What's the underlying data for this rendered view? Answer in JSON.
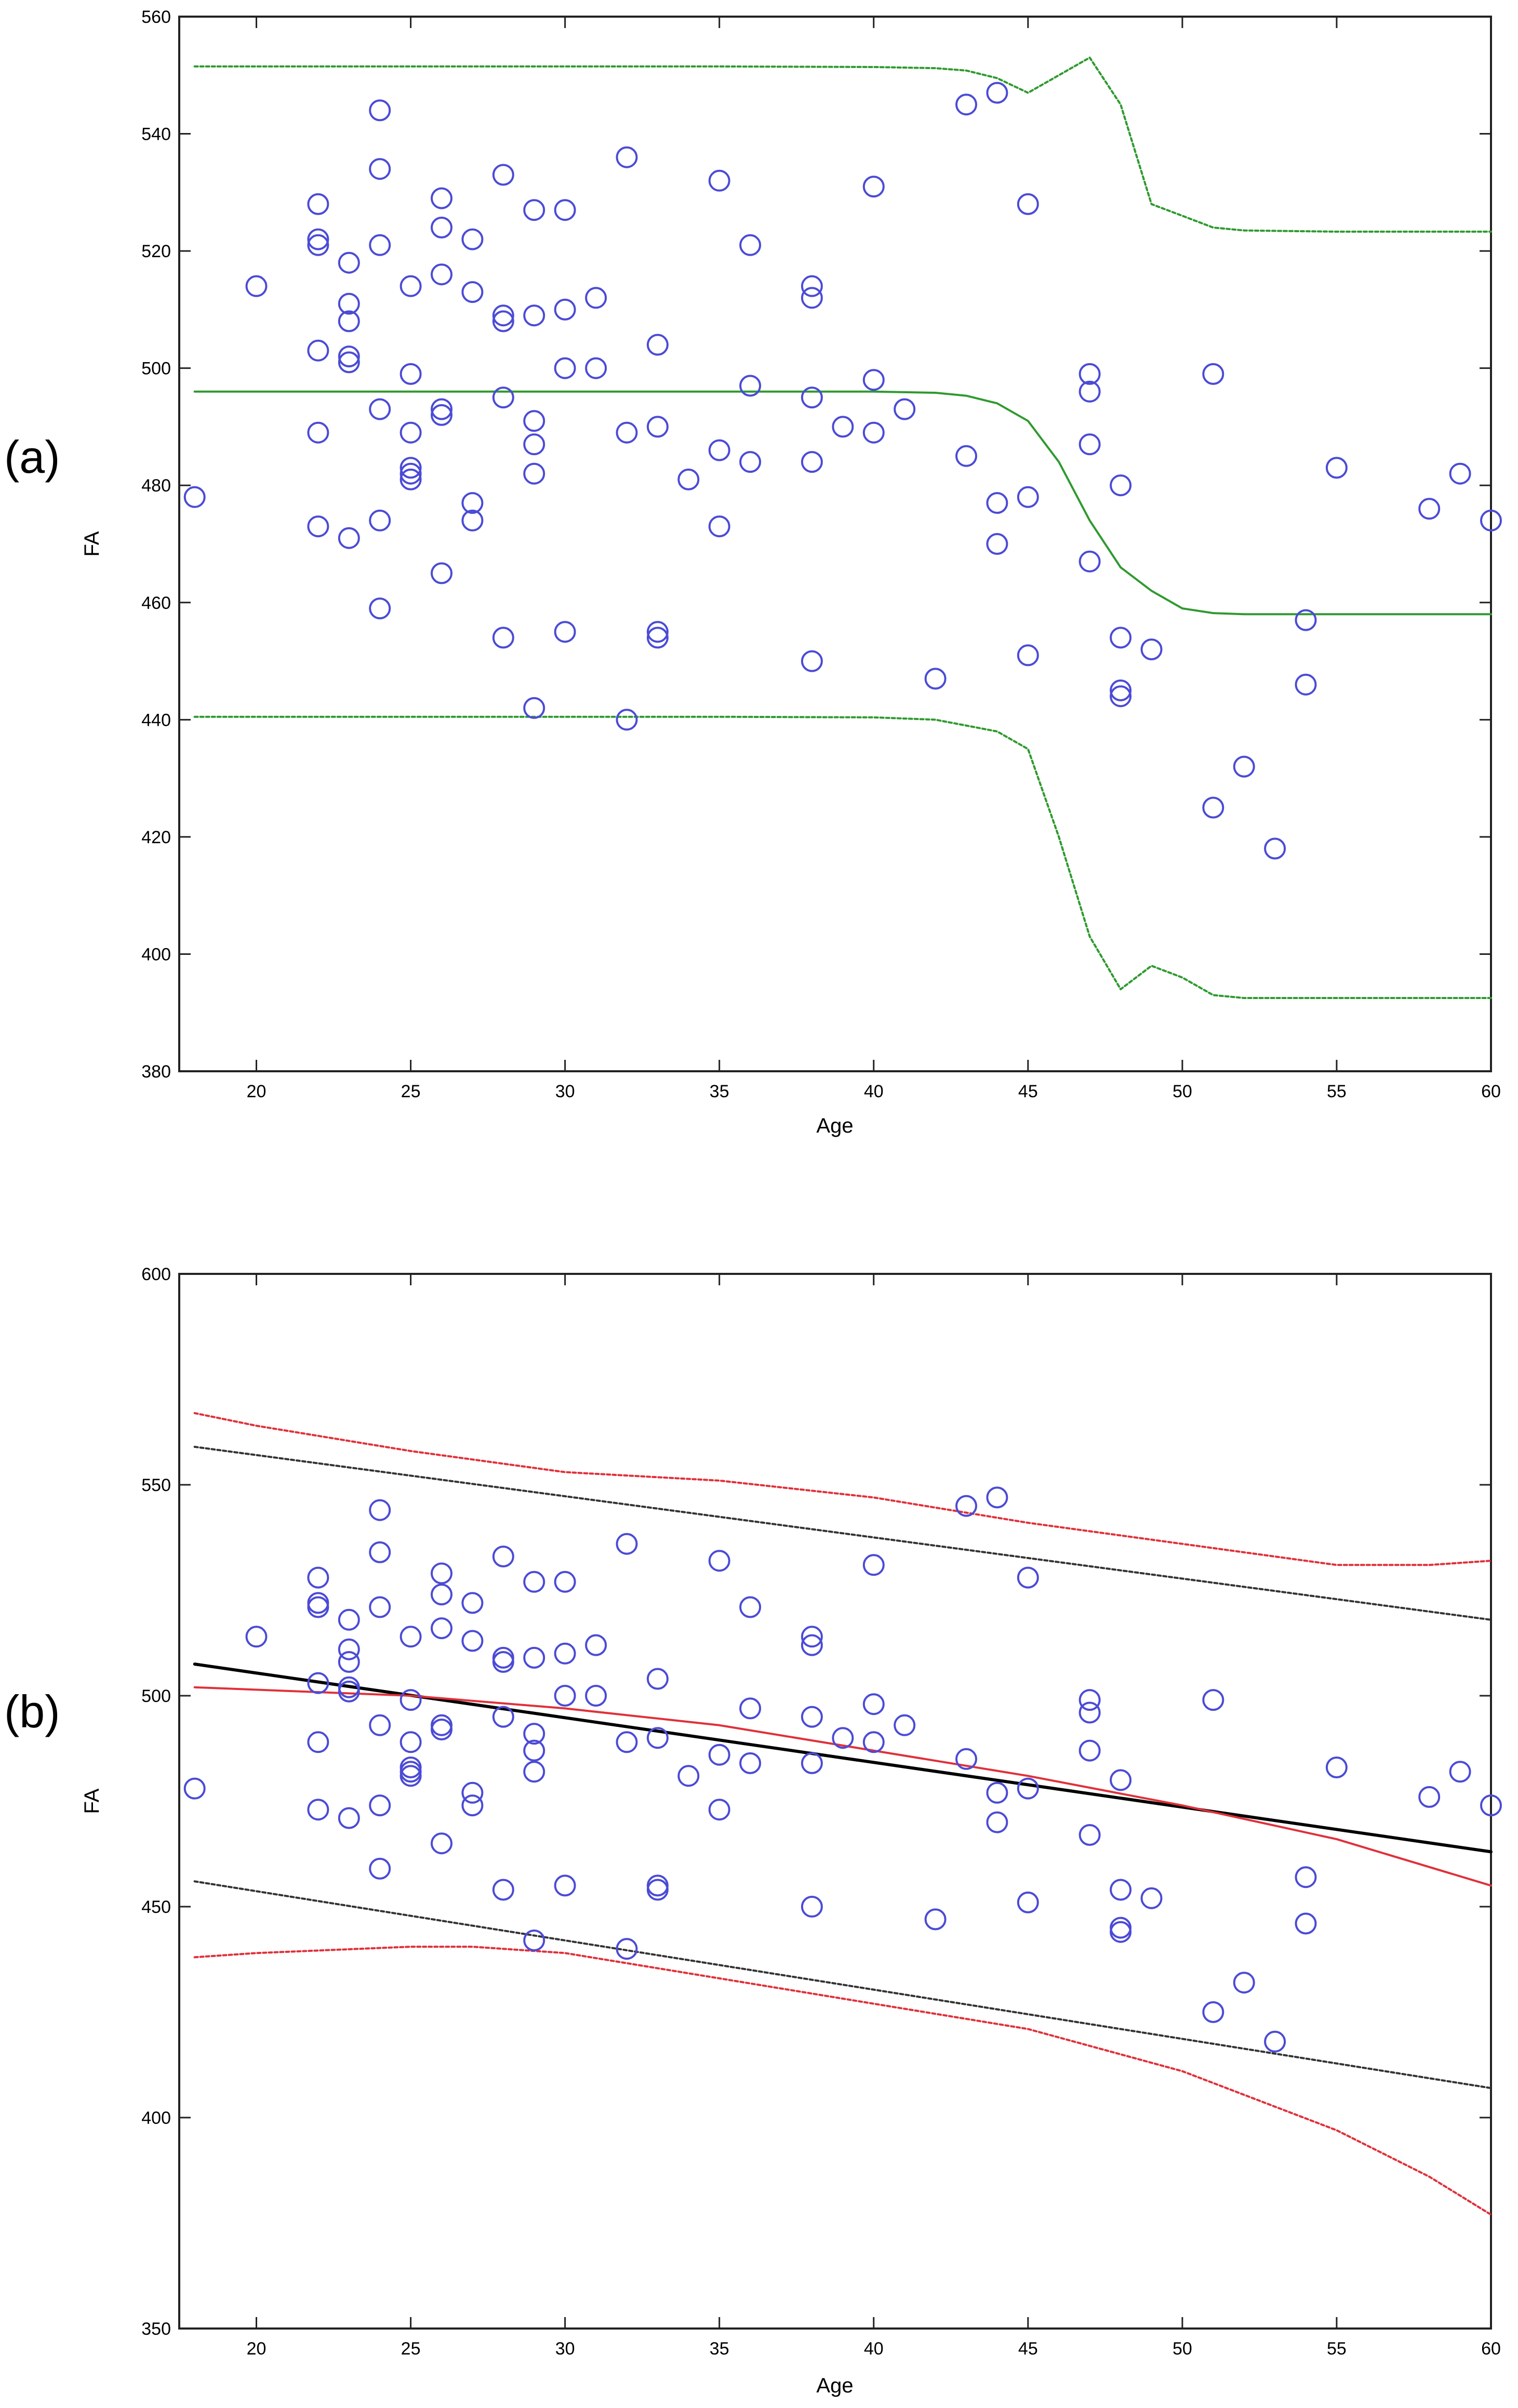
{
  "colors": {
    "points": "#4b4bd6",
    "green": "#2f9a2f",
    "red": "#e0303a",
    "dark_dashed": "#333333",
    "black": "#000000"
  },
  "chart_data": [
    {
      "type": "scatter",
      "panel_label": "(a)",
      "xlabel": "Age",
      "ylabel": "FA",
      "xlim": [
        17.5,
        60
      ],
      "ylim": [
        380,
        560
      ],
      "xticks": [
        20,
        25,
        30,
        35,
        40,
        45,
        50,
        55,
        60
      ],
      "yticks": [
        380,
        400,
        420,
        440,
        460,
        480,
        500,
        520,
        540,
        560
      ],
      "points": [
        [
          18,
          478
        ],
        [
          20,
          514
        ],
        [
          22,
          528
        ],
        [
          22,
          522
        ],
        [
          22,
          521
        ],
        [
          22,
          503
        ],
        [
          22,
          489
        ],
        [
          22,
          473
        ],
        [
          23,
          518
        ],
        [
          23,
          511
        ],
        [
          23,
          508
        ],
        [
          23,
          502
        ],
        [
          23,
          501
        ],
        [
          23,
          471
        ],
        [
          24,
          544
        ],
        [
          24,
          534
        ],
        [
          24,
          521
        ],
        [
          24,
          493
        ],
        [
          24,
          474
        ],
        [
          24,
          459
        ],
        [
          25,
          514
        ],
        [
          25,
          499
        ],
        [
          25,
          489
        ],
        [
          25,
          483
        ],
        [
          25,
          482
        ],
        [
          25,
          481
        ],
        [
          26,
          529
        ],
        [
          26,
          524
        ],
        [
          26,
          516
        ],
        [
          26,
          493
        ],
        [
          26,
          492
        ],
        [
          26,
          465
        ],
        [
          27,
          522
        ],
        [
          27,
          513
        ],
        [
          27,
          477
        ],
        [
          27,
          474
        ],
        [
          28,
          533
        ],
        [
          28,
          509
        ],
        [
          28,
          508
        ],
        [
          28,
          495
        ],
        [
          28,
          454
        ],
        [
          29,
          527
        ],
        [
          29,
          509
        ],
        [
          29,
          491
        ],
        [
          29,
          487
        ],
        [
          29,
          482
        ],
        [
          29,
          442
        ],
        [
          30,
          527
        ],
        [
          30,
          510
        ],
        [
          30,
          500
        ],
        [
          30,
          455
        ],
        [
          31,
          512
        ],
        [
          31,
          500
        ],
        [
          32,
          536
        ],
        [
          32,
          489
        ],
        [
          32,
          440
        ],
        [
          33,
          504
        ],
        [
          33,
          490
        ],
        [
          33,
          455
        ],
        [
          33,
          454
        ],
        [
          34,
          481
        ],
        [
          35,
          532
        ],
        [
          35,
          486
        ],
        [
          35,
          473
        ],
        [
          36,
          521
        ],
        [
          36,
          497
        ],
        [
          36,
          484
        ],
        [
          38,
          514
        ],
        [
          38,
          512
        ],
        [
          38,
          495
        ],
        [
          38,
          484
        ],
        [
          38,
          450
        ],
        [
          39,
          490
        ],
        [
          40,
          531
        ],
        [
          40,
          498
        ],
        [
          40,
          489
        ],
        [
          41,
          493
        ],
        [
          42,
          447
        ],
        [
          43,
          545
        ],
        [
          43,
          485
        ],
        [
          44,
          547
        ],
        [
          44,
          477
        ],
        [
          44,
          470
        ],
        [
          45,
          528
        ],
        [
          45,
          478
        ],
        [
          45,
          451
        ],
        [
          47,
          499
        ],
        [
          47,
          496
        ],
        [
          47,
          487
        ],
        [
          47,
          467
        ],
        [
          48,
          480
        ],
        [
          48,
          454
        ],
        [
          48,
          445
        ],
        [
          48,
          444
        ],
        [
          49,
          452
        ],
        [
          51,
          499
        ],
        [
          51,
          425
        ],
        [
          52,
          432
        ],
        [
          53,
          418
        ],
        [
          54,
          457
        ],
        [
          54,
          446
        ],
        [
          55,
          483
        ],
        [
          58,
          476
        ],
        [
          59,
          482
        ],
        [
          60,
          474
        ]
      ],
      "series": [
        {
          "name": "upper bound",
          "style": "dashed",
          "color": "green",
          "x": [
            18,
            25,
            30,
            35,
            40,
            42,
            43,
            44,
            45,
            46,
            47,
            48,
            49,
            50,
            51,
            52,
            55,
            60
          ],
          "y": [
            551.5,
            551.5,
            551.5,
            551.5,
            551.4,
            551.2,
            550.8,
            549.5,
            547,
            550,
            553,
            545,
            528,
            526,
            524,
            523.5,
            523.3,
            523.3
          ]
        },
        {
          "name": "center",
          "style": "solid",
          "color": "green",
          "x": [
            18,
            25,
            30,
            35,
            40,
            42,
            43,
            44,
            45,
            46,
            47,
            48,
            49,
            50,
            51,
            52,
            55,
            60
          ],
          "y": [
            496,
            496,
            496,
            496,
            496,
            495.8,
            495.3,
            494,
            491,
            484,
            474,
            466,
            462,
            459,
            458.2,
            458,
            458,
            458
          ]
        },
        {
          "name": "lower bound",
          "style": "dashed",
          "color": "green",
          "x": [
            18,
            25,
            30,
            35,
            40,
            42,
            43,
            44,
            45,
            46,
            47,
            48,
            49,
            50,
            51,
            52,
            55,
            60
          ],
          "y": [
            440.5,
            440.5,
            440.5,
            440.5,
            440.4,
            440,
            439,
            438,
            435,
            420,
            403,
            394,
            398,
            396,
            393,
            392.5,
            392.5,
            392.5
          ]
        }
      ]
    },
    {
      "type": "scatter",
      "panel_label": "(b)",
      "xlabel": "Age",
      "ylabel": "FA",
      "xlim": [
        17.5,
        60
      ],
      "ylim": [
        350,
        600
      ],
      "xticks": [
        20,
        25,
        30,
        35,
        40,
        45,
        50,
        55,
        60
      ],
      "yticks": [
        350,
        400,
        450,
        500,
        550,
        600
      ],
      "points_same_as_panel": "(a)",
      "series": [
        {
          "name": "red upper",
          "style": "dashed",
          "color": "red",
          "x": [
            18,
            20,
            25,
            30,
            35,
            40,
            45,
            50,
            55,
            58,
            60
          ],
          "y": [
            567,
            564,
            558,
            553,
            551,
            547,
            541,
            536,
            531,
            531,
            532
          ]
        },
        {
          "name": "dark upper",
          "style": "dashed",
          "color": "dark_dashed",
          "x": [
            18,
            60
          ],
          "y": [
            559,
            518
          ]
        },
        {
          "name": "black fit",
          "style": "solid",
          "color": "black",
          "x": [
            18,
            60
          ],
          "y": [
            507.5,
            463
          ]
        },
        {
          "name": "red fit",
          "style": "solid",
          "color": "red",
          "x": [
            18,
            25,
            30,
            35,
            40,
            45,
            50,
            55,
            60
          ],
          "y": [
            502,
            500,
            497,
            493,
            487,
            481,
            474,
            466,
            455
          ]
        },
        {
          "name": "dark lower",
          "style": "dashed",
          "color": "dark_dashed",
          "x": [
            18,
            60
          ],
          "y": [
            456,
            407
          ]
        },
        {
          "name": "red lower",
          "style": "dashed",
          "color": "red",
          "x": [
            18,
            20,
            25,
            27,
            30,
            35,
            40,
            45,
            50,
            55,
            58,
            60
          ],
          "y": [
            438,
            439,
            440.5,
            440.5,
            439,
            433,
            427,
            421,
            411,
            397,
            386,
            377
          ]
        }
      ]
    }
  ]
}
